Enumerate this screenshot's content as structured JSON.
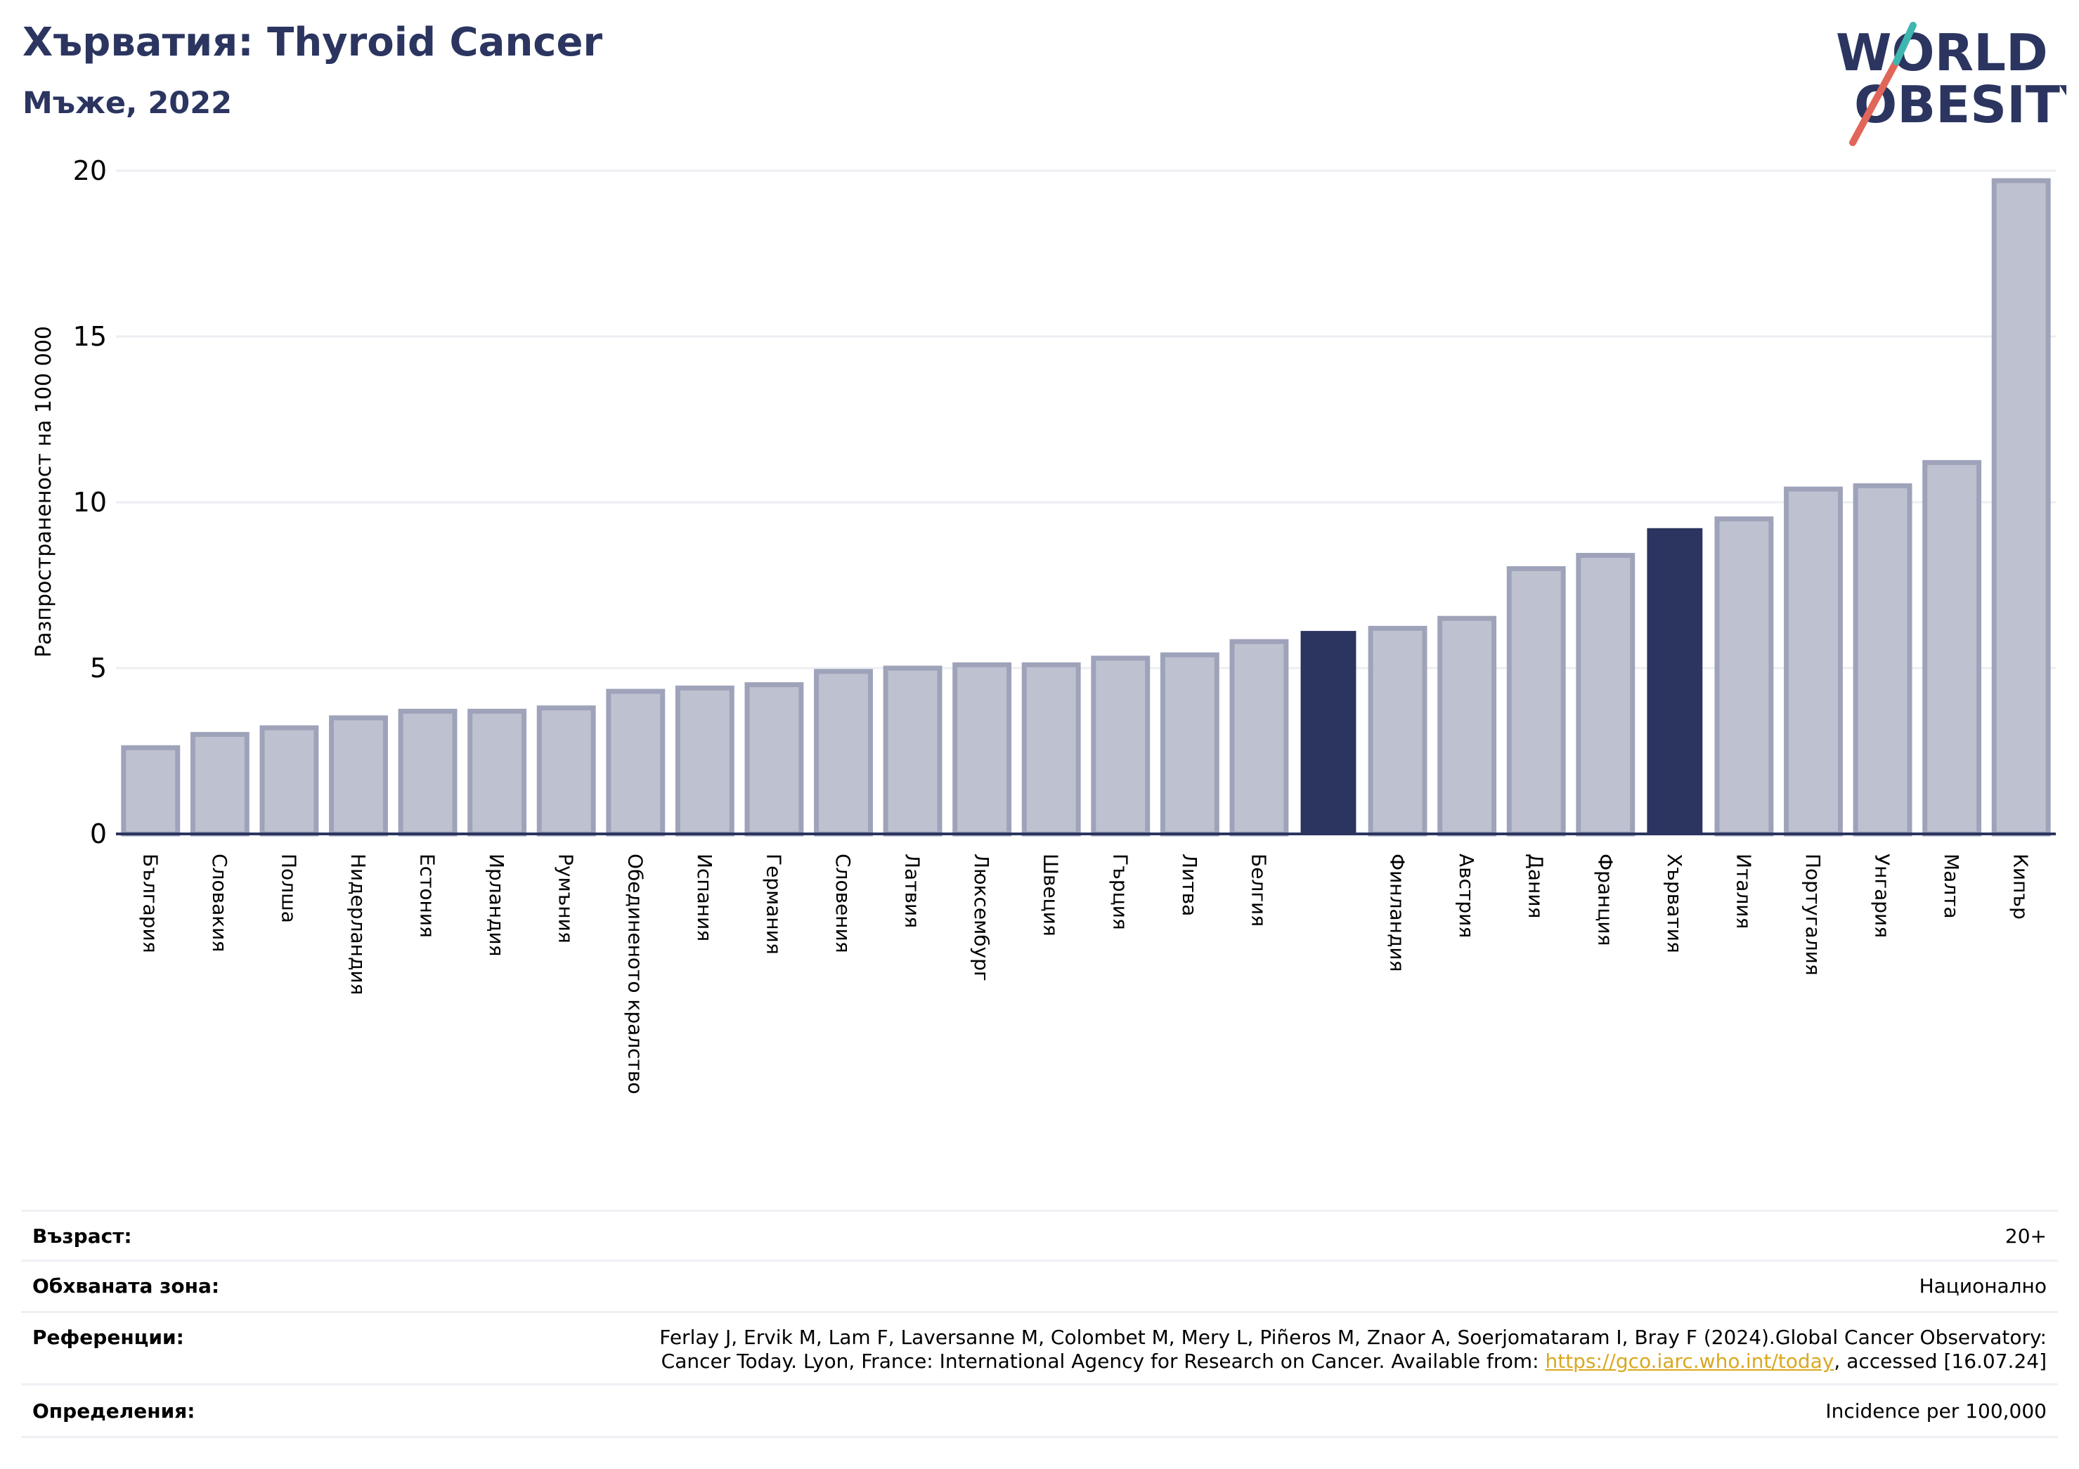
{
  "header": {
    "title": "Хърватия: Thyroid Cancer",
    "subtitle": "Мъже, 2022"
  },
  "logo": {
    "line1": "WORLD",
    "line2": "OBESITY",
    "text_color": "#2b3560",
    "slash_colors": [
      "#e1665a",
      "#3fb6b0"
    ]
  },
  "colors": {
    "bar": "#bec1cf",
    "bar_border": "#9ea3ba",
    "highlight": "#2b3560",
    "grid": "#eceef3",
    "axis": "#2b3560"
  },
  "chart_data": {
    "type": "bar",
    "ylabel": "Разпространеност  на 100 000",
    "ylim": [
      0,
      20
    ],
    "yticks": [
      0,
      5,
      10,
      15,
      20
    ],
    "grid": true,
    "categories": [
      "България",
      "Словакия",
      "Полша",
      "Нидерландия",
      "Естония",
      "Ирландия",
      "Румъния",
      "Обединеното кралство",
      "Испания",
      "Германия",
      "Словения",
      "Латвия",
      "Люксембург",
      "Швеция",
      "Гърция",
      "Литва",
      "Белгия",
      "",
      "Финландия",
      "Австрия",
      "Дания",
      "Франция",
      "Хърватия",
      "Италия",
      "Португалия",
      "Унгария",
      "Малта",
      "Кипър"
    ],
    "values": [
      2.6,
      3.0,
      3.2,
      3.5,
      3.7,
      3.7,
      3.8,
      4.3,
      4.4,
      4.5,
      4.9,
      5.0,
      5.1,
      5.1,
      5.3,
      5.4,
      5.8,
      6.1,
      6.2,
      6.5,
      8.0,
      8.4,
      9.2,
      9.5,
      10.4,
      10.5,
      11.2,
      19.7
    ],
    "highlighted": [
      17,
      22
    ]
  },
  "info": {
    "age_label": "Възраст:",
    "age_value": "20+",
    "coverage_label": "Обхваната зона:",
    "coverage_value": "Национално",
    "references_label": "Референции:",
    "references_line1": "Ferlay J, Ervik M, Lam F, Laversanne M, Colombet M, Mery L, Piñeros M, Znaor A, Soerjomataram I, Bray F (2024).Global Cancer Observatory:",
    "references_line2_pre": "Cancer Today. Lyon, France: International Agency for Research on Cancer. Available from: ",
    "references_link": "https://gco.iarc.who.int/today",
    "references_line2_post": ", accessed [16.07.24]",
    "definitions_label": "Определения:",
    "definitions_value": "Incidence per 100,000"
  }
}
